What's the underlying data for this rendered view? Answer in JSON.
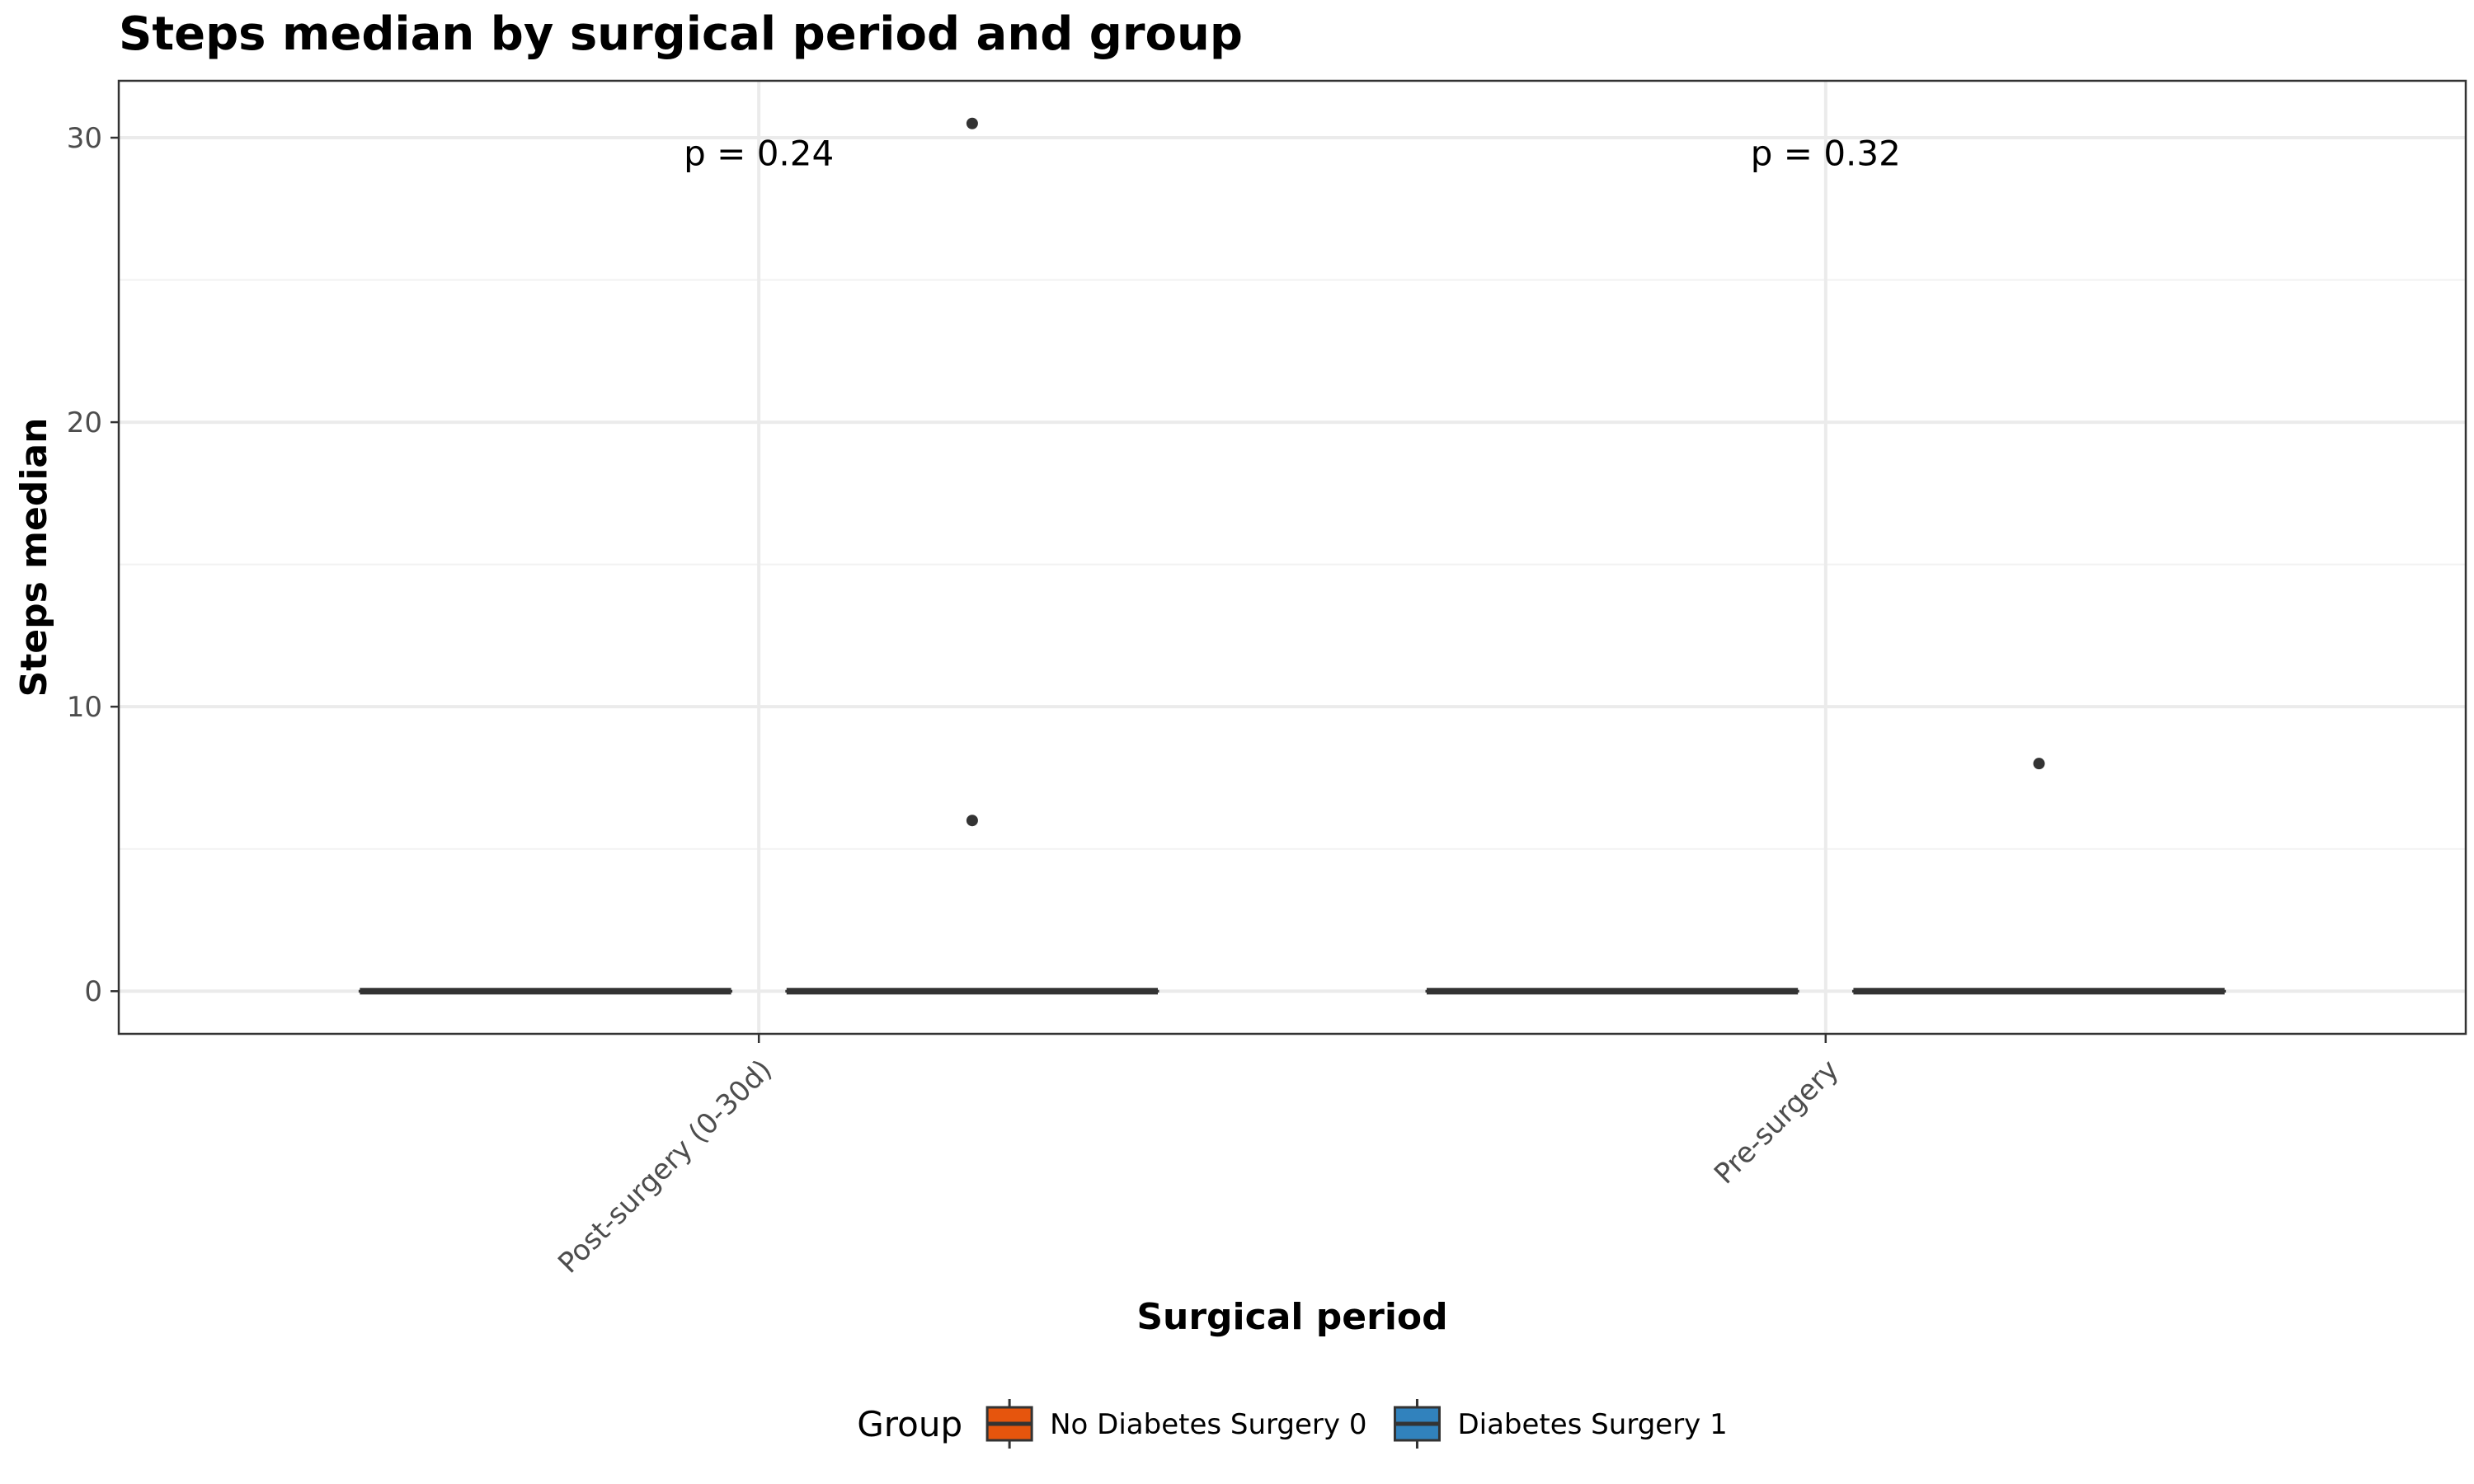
{
  "chart_data": {
    "type": "box",
    "title": "Steps median by surgical period and group",
    "xlabel": "Surgical period",
    "ylabel": "Steps median",
    "categories": [
      "Post-surgery (0-30d)",
      "Pre-surgery"
    ],
    "ylim": [
      -1.5,
      32
    ],
    "yticks": [
      0,
      10,
      20,
      30
    ],
    "grid": true,
    "legend": {
      "title": "Group",
      "position": "bottom"
    },
    "series": [
      {
        "name": "No Diabetes Surgery 0",
        "color": "#E6550D",
        "boxes": [
          {
            "category": "Post-surgery (0-30d)",
            "min": 0,
            "q1": 0,
            "median": 0,
            "q3": 0,
            "max": 0,
            "outliers": []
          },
          {
            "category": "Pre-surgery",
            "min": 0,
            "q1": 0,
            "median": 0,
            "q3": 0,
            "max": 0,
            "outliers": []
          }
        ]
      },
      {
        "name": "Diabetes Surgery 1",
        "color": "#3182BD",
        "boxes": [
          {
            "category": "Post-surgery (0-30d)",
            "min": 0,
            "q1": 0,
            "median": 0,
            "q3": 0,
            "max": 0,
            "outliers": [
              30.5,
              6
            ]
          },
          {
            "category": "Pre-surgery",
            "min": 0,
            "q1": 0,
            "median": 0,
            "q3": 0,
            "max": 0,
            "outliers": [
              8
            ]
          }
        ]
      }
    ],
    "annotations": [
      {
        "category": "Post-surgery (0-30d)",
        "text": "p = 0.24",
        "y": 29.5
      },
      {
        "category": "Pre-surgery",
        "text": "p = 0.32",
        "y": 29.5
      }
    ]
  }
}
